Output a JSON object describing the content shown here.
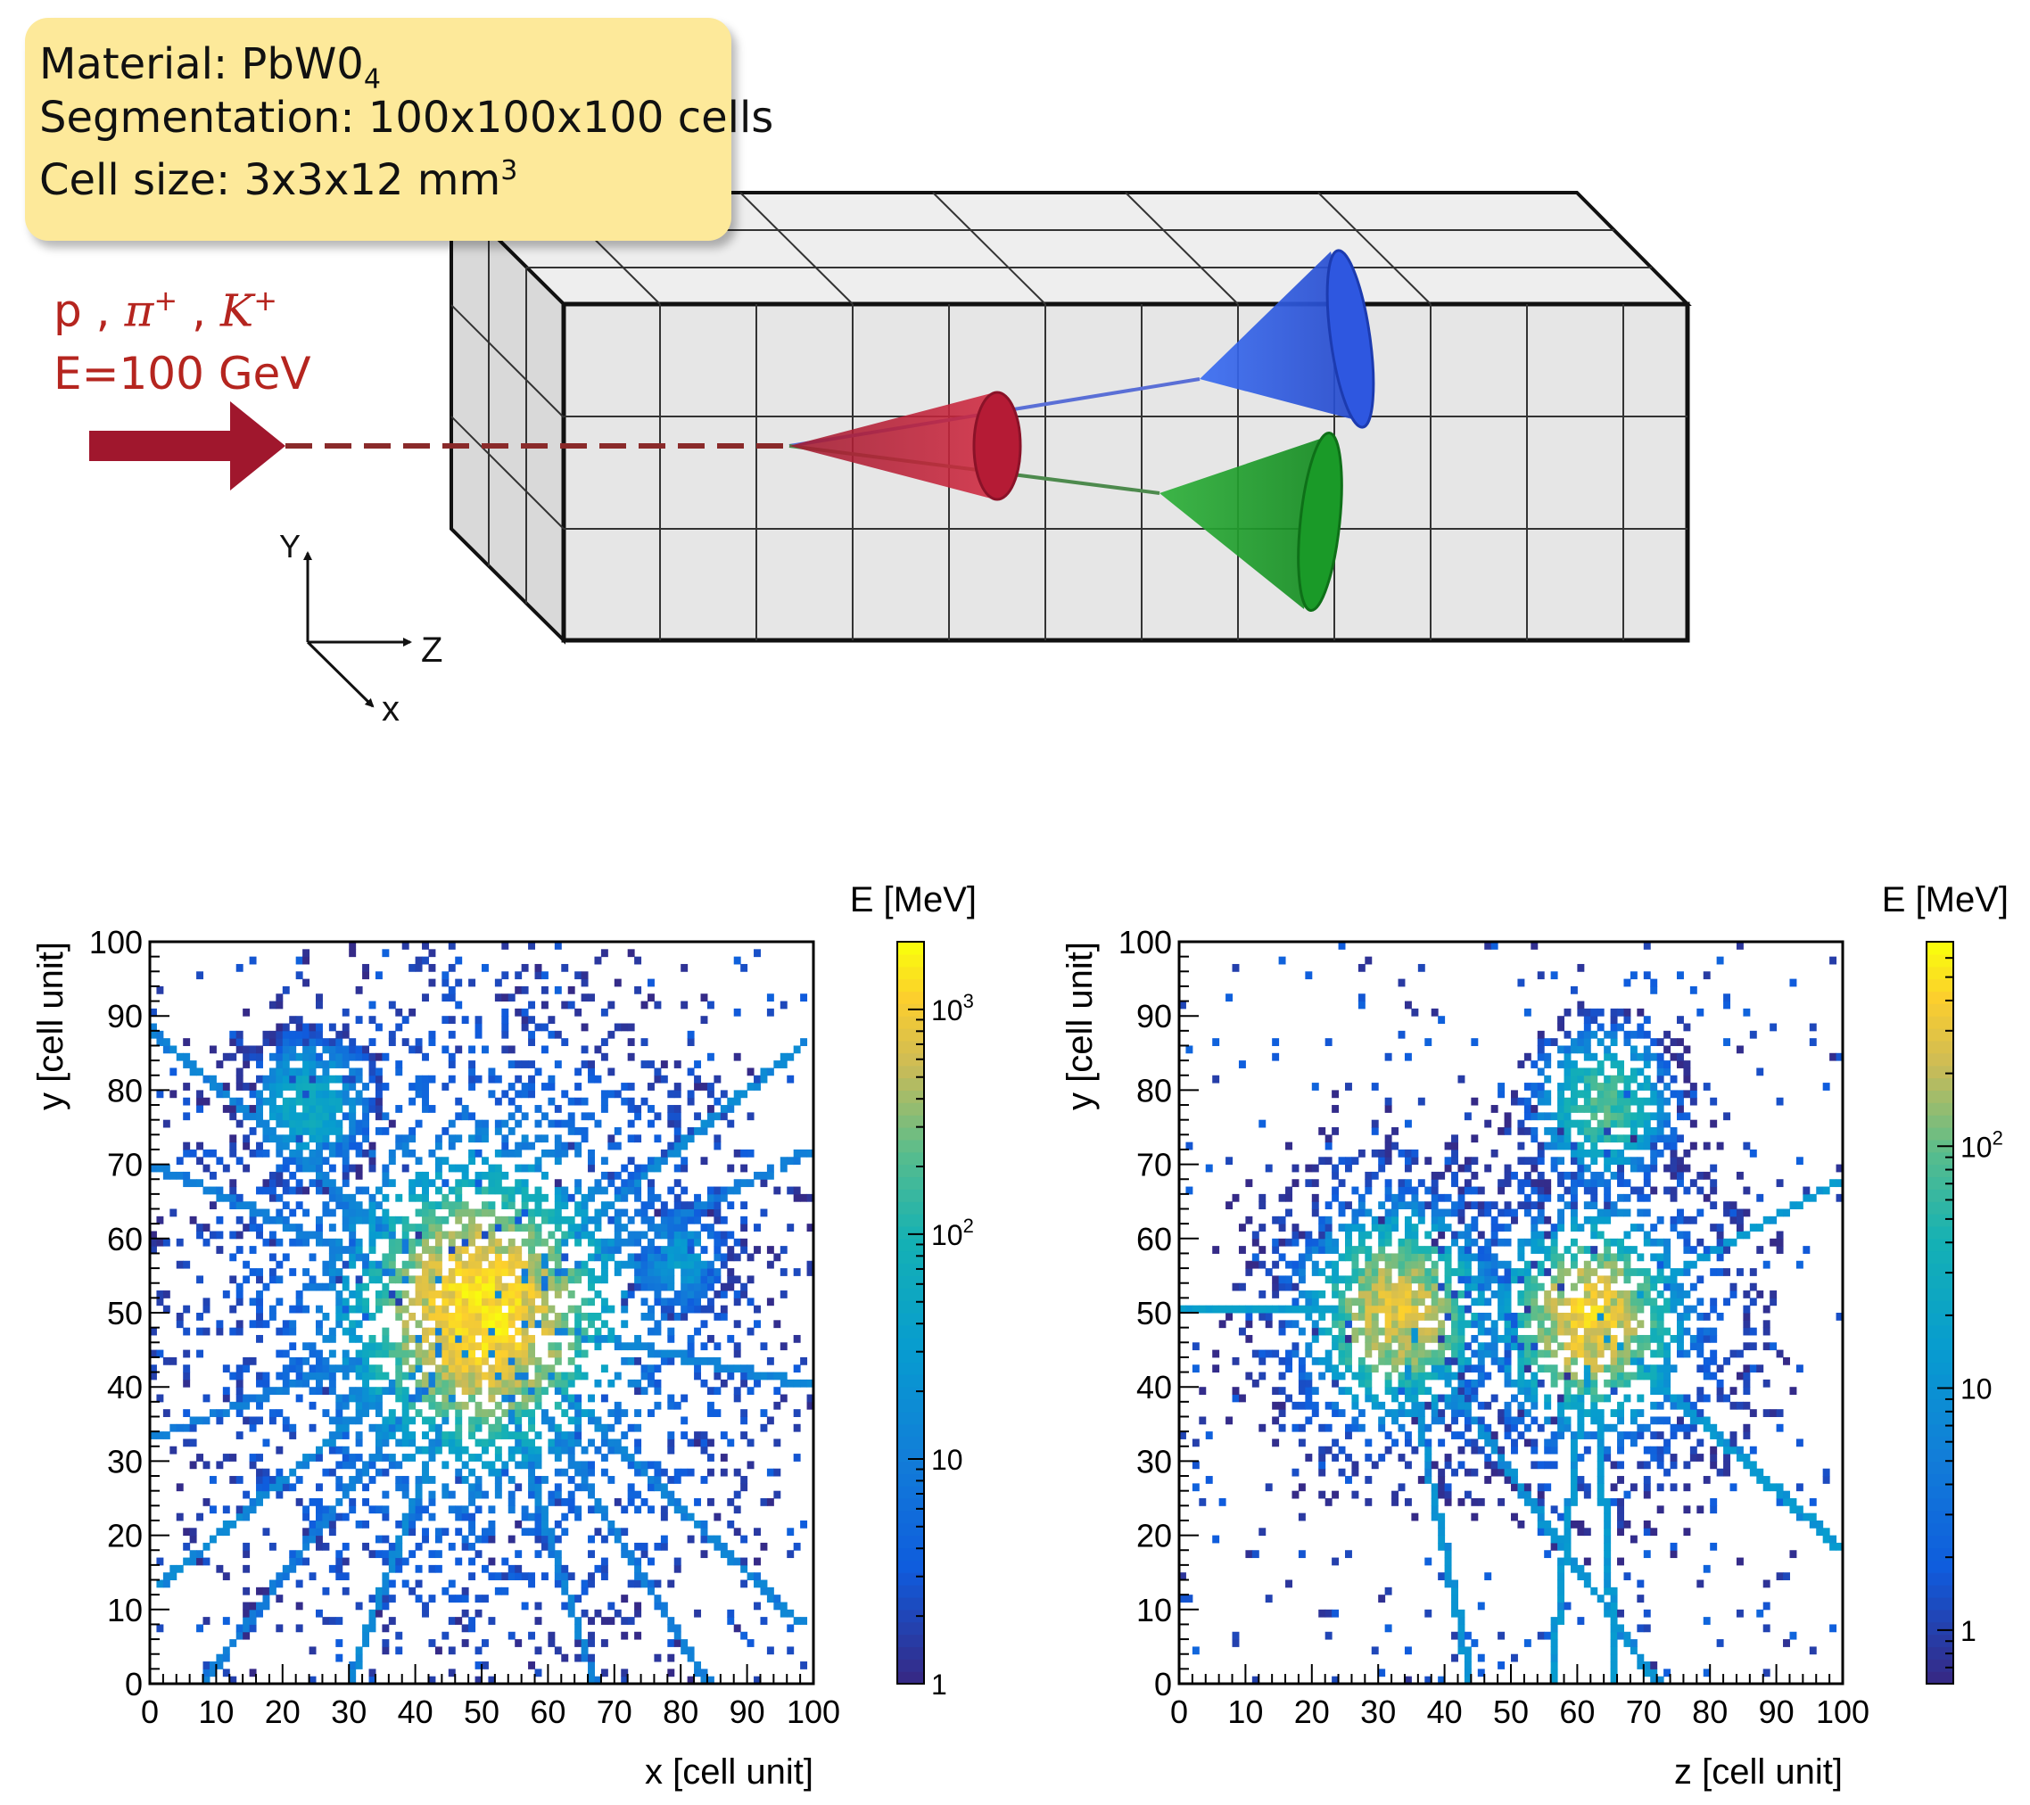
{
  "infobox": {
    "material_label": "Material: PbW0",
    "material_sub": "4",
    "segmentation": "Segmentation: 100x100x100 cells",
    "cell_size_label": "Cell size: 3x3x12 mm",
    "cell_size_sup": "3"
  },
  "beam": {
    "particle_p": "p",
    "particle_pi": "π",
    "particle_k": "K",
    "charge": "+",
    "separator": ",",
    "energy": "E=100 GeV"
  },
  "axes_triad": {
    "y": "Y",
    "z": "Z",
    "x": "x"
  },
  "colors": {
    "beam_red": "#b5251f",
    "arrow": "#a0172d",
    "cone_red": "#c01f3a",
    "cone_blue": "#2f5fe8",
    "cone_green": "#1f9a2a",
    "box_face": "#e6e6e6"
  },
  "chart_data": [
    {
      "type": "heatmap",
      "title": "",
      "xlabel": "x [cell unit]",
      "ylabel": "y [cell unit]",
      "xlim": [
        0,
        100
      ],
      "ylim": [
        0,
        100
      ],
      "xticks": [
        "0",
        "10",
        "20",
        "30",
        "40",
        "50",
        "60",
        "70",
        "80",
        "90",
        "100"
      ],
      "yticks": [
        "0",
        "10",
        "20",
        "30",
        "40",
        "50",
        "60",
        "70",
        "80",
        "90",
        "100"
      ],
      "colorbar": {
        "label": "E [MeV]",
        "scale": "log",
        "min": 1,
        "max": 2000,
        "ticks": [
          {
            "value": 1,
            "label": "1"
          },
          {
            "value": 10,
            "label": "10"
          },
          {
            "value": 100,
            "label": "10",
            "exp": "2"
          },
          {
            "value": 1000,
            "label": "10",
            "exp": "3"
          }
        ]
      },
      "clusters": [
        {
          "x": 50,
          "y": 50,
          "peak_MeV": 1500,
          "spread": 7
        },
        {
          "x": 24,
          "y": 78,
          "peak_MeV": 60,
          "spread": 4
        },
        {
          "x": 80,
          "y": 57,
          "peak_MeV": 30,
          "spread": 3
        }
      ],
      "tracks": [
        {
          "from": [
            50,
            50
          ],
          "to": [
            0,
            88
          ],
          "level_MeV": 10
        },
        {
          "from": [
            50,
            50
          ],
          "to": [
            98,
            86
          ],
          "level_MeV": 12
        },
        {
          "from": [
            50,
            50
          ],
          "to": [
            0,
            33
          ],
          "level_MeV": 8
        },
        {
          "from": [
            50,
            50
          ],
          "to": [
            100,
            40
          ],
          "level_MeV": 10
        },
        {
          "from": [
            50,
            50
          ],
          "to": [
            98,
            8
          ],
          "level_MeV": 10
        },
        {
          "from": [
            50,
            50
          ],
          "to": [
            8,
            0
          ],
          "level_MeV": 8
        },
        {
          "from": [
            50,
            50
          ],
          "to": [
            30,
            0
          ],
          "level_MeV": 12
        },
        {
          "from": [
            50,
            50
          ],
          "to": [
            67,
            0
          ],
          "level_MeV": 10
        },
        {
          "from": [
            50,
            50
          ],
          "to": [
            84,
            0
          ],
          "level_MeV": 8
        },
        {
          "from": [
            50,
            50
          ],
          "to": [
            100,
            72
          ],
          "level_MeV": 8
        },
        {
          "from": [
            50,
            50
          ],
          "to": [
            0,
            70
          ],
          "level_MeV": 8
        },
        {
          "from": [
            50,
            50
          ],
          "to": [
            1,
            13
          ],
          "level_MeV": 12
        }
      ]
    },
    {
      "type": "heatmap",
      "title": "",
      "xlabel": "z [cell unit]",
      "ylabel": "y [cell unit]",
      "xlim": [
        0,
        100
      ],
      "ylim": [
        0,
        100
      ],
      "xticks": [
        "0",
        "10",
        "20",
        "30",
        "40",
        "50",
        "60",
        "70",
        "80",
        "90",
        "100"
      ],
      "yticks": [
        "0",
        "10",
        "20",
        "30",
        "40",
        "50",
        "60",
        "70",
        "80",
        "90",
        "100"
      ],
      "colorbar": {
        "label": "E [MeV]",
        "scale": "log",
        "min": 0.6,
        "max": 700,
        "ticks": [
          {
            "value": 1,
            "label": "1"
          },
          {
            "value": 10,
            "label": "10"
          },
          {
            "value": 100,
            "label": "10",
            "exp": "2"
          }
        ]
      },
      "clusters": [
        {
          "x": 33,
          "y": 50,
          "peak_MeV": 300,
          "spread": 5
        },
        {
          "x": 62,
          "y": 49,
          "peak_MeV": 400,
          "spread": 5
        },
        {
          "x": 64,
          "y": 78,
          "peak_MeV": 80,
          "spread": 4
        }
      ],
      "tracks": [
        {
          "from": [
            0,
            50
          ],
          "to": [
            25,
            50
          ],
          "level_MeV": 12
        },
        {
          "from": [
            62,
            49
          ],
          "to": [
            100,
            68
          ],
          "level_MeV": 10
        },
        {
          "from": [
            62,
            49
          ],
          "to": [
            100,
            18
          ],
          "level_MeV": 10
        },
        {
          "from": [
            62,
            49
          ],
          "to": [
            56,
            0
          ],
          "level_MeV": 10
        },
        {
          "from": [
            33,
            50
          ],
          "to": [
            44,
            0
          ],
          "level_MeV": 8
        },
        {
          "from": [
            33,
            50
          ],
          "to": [
            72,
            0
          ],
          "level_MeV": 8
        },
        {
          "from": [
            62,
            49
          ],
          "to": [
            66,
            0
          ],
          "level_MeV": 10
        }
      ]
    }
  ]
}
